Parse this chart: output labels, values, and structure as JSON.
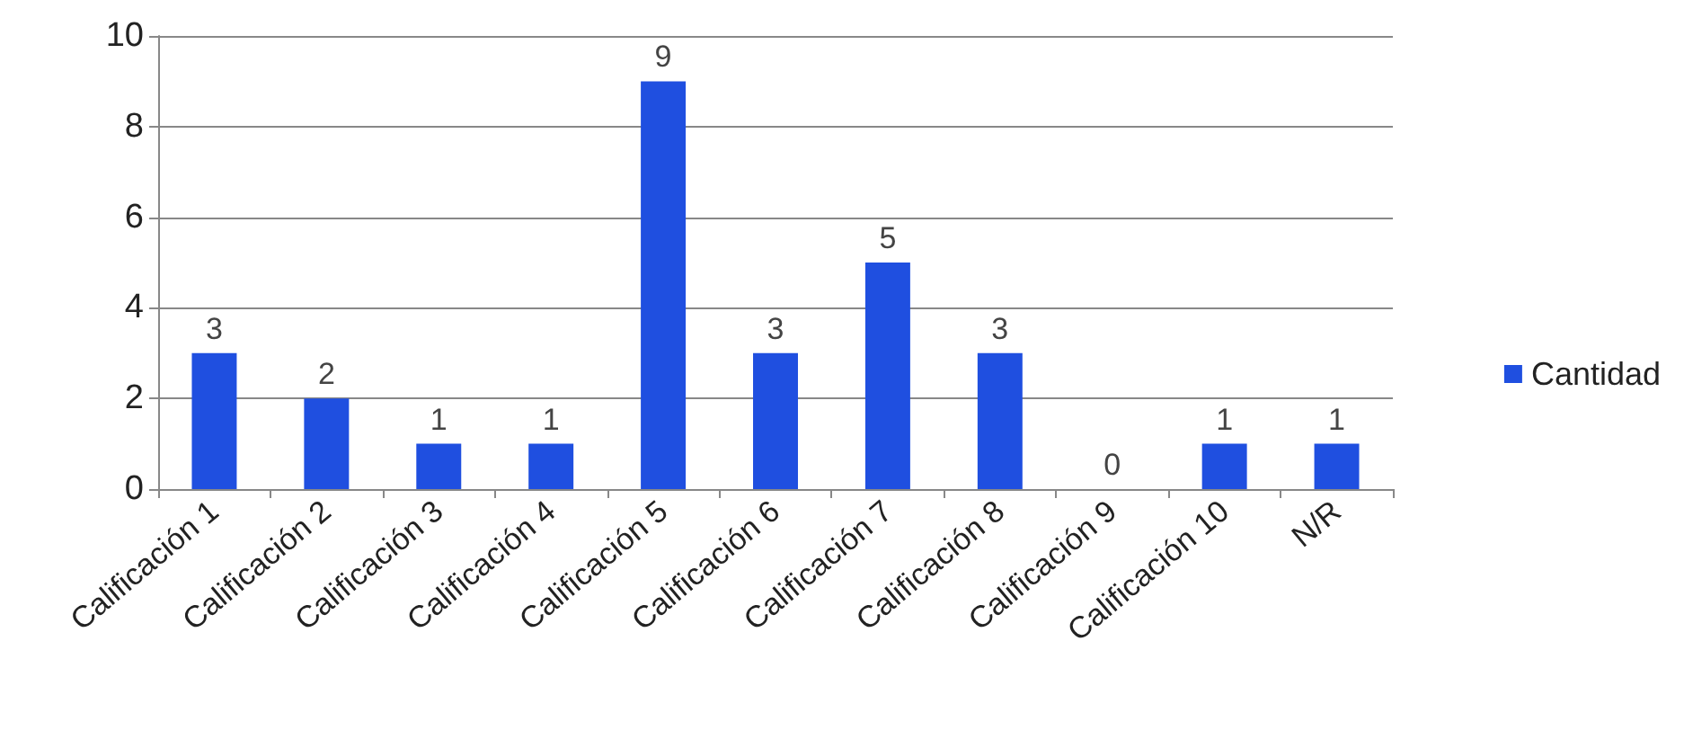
{
  "chart_data": {
    "type": "bar",
    "categories": [
      "Calificación 1",
      "Calificación 2",
      "Calificación 3",
      "Calificación 4",
      "Calificación 5",
      "Calificación 6",
      "Calificación 7",
      "Calificación 8",
      "Calificación 9",
      "Calificación 10",
      "N/R"
    ],
    "series": [
      {
        "name": "Cantidad",
        "color": "#1f4fe0",
        "values": [
          3,
          2,
          1,
          1,
          9,
          3,
          5,
          3,
          0,
          1,
          1
        ]
      }
    ],
    "ylim": [
      0,
      10
    ],
    "yticks": [
      0,
      2,
      4,
      6,
      8,
      10
    ],
    "grid": "y",
    "legend": "right",
    "data_labels": true
  }
}
